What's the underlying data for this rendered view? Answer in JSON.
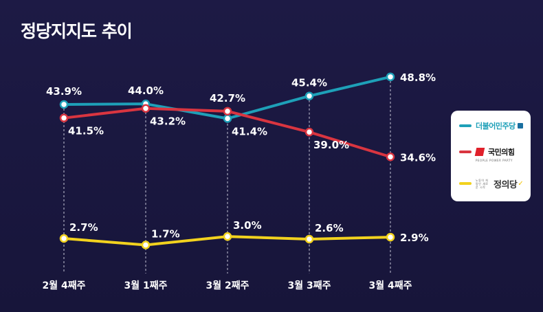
{
  "chart_data": {
    "type": "line",
    "title": "정당지지도 추이",
    "categories": [
      "2월 4째주",
      "3월 1째주",
      "3월 2째주",
      "3월 3째주",
      "3월 4째주"
    ],
    "series": [
      {
        "name": "더불어민주당",
        "color": "#1ea0b8",
        "values": [
          43.9,
          44.0,
          41.4,
          45.4,
          48.8
        ],
        "labels": [
          "43.9%",
          "44.0%",
          "41.4%",
          "45.4%",
          "48.8%"
        ],
        "label_pos": [
          "above",
          "above",
          "below",
          "above",
          "right"
        ]
      },
      {
        "name": "국민의힘",
        "color": "#d93540",
        "values": [
          41.5,
          43.2,
          42.7,
          39.0,
          34.6
        ],
        "labels": [
          "41.5%",
          "43.2%",
          "42.7%",
          "39.0%",
          "34.6%"
        ],
        "label_pos": [
          "below",
          "below",
          "above",
          "below",
          "right"
        ]
      },
      {
        "name": "정의당",
        "color": "#f2d21e",
        "values": [
          2.7,
          1.7,
          3.0,
          2.6,
          2.9
        ],
        "labels": [
          "2.7%",
          "1.7%",
          "3.0%",
          "2.6%",
          "2.9%"
        ],
        "label_pos": [
          "above",
          "above",
          "above",
          "above",
          "right"
        ]
      }
    ],
    "xlabel": "",
    "ylabel": "",
    "grid": false,
    "legend": "right"
  },
  "legend": {
    "minjoo": {
      "name": "더불어민주당"
    },
    "ppp": {
      "name": "국민의힘",
      "sub": "PEOPLE POWER PARTY"
    },
    "justice": {
      "name": "정의당",
      "sub": "노동이 희망인 새로운 시작"
    }
  }
}
